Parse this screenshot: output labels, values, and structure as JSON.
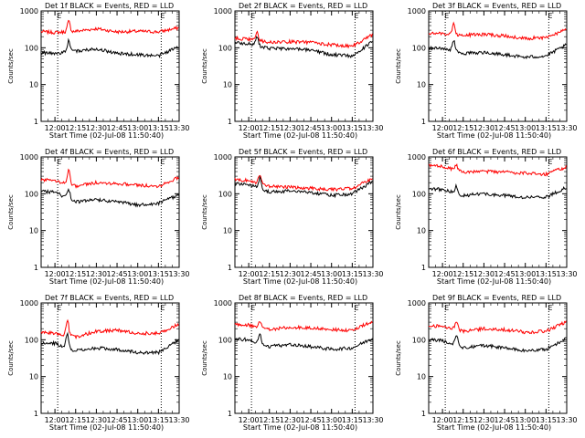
{
  "chart_data": [
    {
      "type": "line",
      "title": "Det 1f BLACK = Events, RED = LLD",
      "ylabel": "Counts/sec",
      "xlabel": "Start Time (02-Jul-08 11:50:40)",
      "x": [
        "12:00",
        "12:15",
        "12:30",
        "12:45",
        "13:00",
        "13:15",
        "13:30"
      ],
      "xlim": [
        "11:50",
        "13:30"
      ],
      "ylim": [
        1,
        1000
      ],
      "yscale": "log",
      "yticks": [
        1,
        10,
        100,
        1000
      ],
      "marker_text": "E",
      "marker_times": [
        "12:00",
        "13:15"
      ],
      "grid": false,
      "series": [
        {
          "color": "#ff0000",
          "values": [
            260,
            280,
            330,
            270,
            280,
            270,
            350
          ],
          "peak": {
            "time": "12:10",
            "value": 520
          }
        },
        {
          "color": "#000000",
          "values": [
            70,
            80,
            95,
            70,
            65,
            60,
            110
          ],
          "peak": {
            "time": "12:10",
            "value": 160
          }
        }
      ]
    },
    {
      "type": "line",
      "title": "Det 2f BLACK = Events, RED = LLD",
      "ylabel": "Counts/sec",
      "xlabel": "Start Time (02-Jul-08 11:50:40)",
      "x": [
        "12:00",
        "12:15",
        "12:30",
        "12:45",
        "13:00",
        "13:15",
        "13:30"
      ],
      "xlim": [
        "11:50",
        "13:30"
      ],
      "ylim": [
        1,
        1000
      ],
      "yscale": "log",
      "yticks": [
        1,
        10,
        100,
        1000
      ],
      "marker_text": "E",
      "marker_times": [
        "12:00",
        "13:15"
      ],
      "grid": false,
      "series": [
        {
          "color": "#ff0000",
          "values": [
            170,
            140,
            145,
            140,
            120,
            110,
            230
          ],
          "peak": {
            "time": "12:06",
            "value": 260
          }
        },
        {
          "color": "#000000",
          "values": [
            130,
            95,
            95,
            85,
            65,
            60,
            150
          ],
          "peak": {
            "time": "12:06",
            "value": 200
          }
        }
      ]
    },
    {
      "type": "line",
      "title": "Det 3f BLACK = Events, RED = LLD",
      "ylabel": "Counts/sec",
      "xlabel": "Start Time (02-Jul-08 11:50:40)",
      "x": [
        "12:00",
        "12:15",
        "12:30",
        "12:45",
        "13:00",
        "13:15",
        "13:30"
      ],
      "xlim": [
        "11:50",
        "13:30"
      ],
      "ylim": [
        1,
        1000
      ],
      "yscale": "log",
      "yticks": [
        1,
        10,
        100,
        1000
      ],
      "marker_text": "E",
      "marker_times": [
        "12:00",
        "13:15"
      ],
      "grid": false,
      "series": [
        {
          "color": "#ff0000",
          "values": [
            240,
            220,
            230,
            210,
            180,
            190,
            310
          ],
          "peak": {
            "time": "12:08",
            "value": 440
          }
        },
        {
          "color": "#000000",
          "values": [
            95,
            70,
            75,
            65,
            55,
            60,
            120
          ],
          "peak": {
            "time": "12:08",
            "value": 160
          }
        }
      ]
    },
    {
      "type": "line",
      "title": "Det 4f BLACK = Events, RED = LLD",
      "ylabel": "Counts/sec",
      "xlabel": "Start Time (02-Jul-08 11:50:40)",
      "x": [
        "12:00",
        "12:15",
        "12:30",
        "12:45",
        "13:00",
        "13:15",
        "13:30"
      ],
      "xlim": [
        "11:50",
        "13:30"
      ],
      "ylim": [
        1,
        1000
      ],
      "yscale": "log",
      "yticks": [
        1,
        10,
        100,
        1000
      ],
      "marker_text": "E",
      "marker_times": [
        "12:00",
        "13:15"
      ],
      "grid": false,
      "series": [
        {
          "color": "#ff0000",
          "values": [
            230,
            160,
            200,
            190,
            170,
            160,
            280
          ],
          "peak": {
            "time": "12:10",
            "value": 470
          }
        },
        {
          "color": "#000000",
          "values": [
            110,
            60,
            70,
            60,
            50,
            55,
            95
          ],
          "peak": {
            "time": "12:10",
            "value": 130
          }
        }
      ]
    },
    {
      "type": "line",
      "title": "Det 5f BLACK = Events, RED = LLD",
      "ylabel": "Counts/sec",
      "xlabel": "Start Time (02-Jul-08 11:50:40)",
      "x": [
        "12:00",
        "12:15",
        "12:30",
        "12:45",
        "13:00",
        "13:15",
        "13:30"
      ],
      "xlim": [
        "11:50",
        "13:30"
      ],
      "ylim": [
        1,
        1000
      ],
      "yscale": "log",
      "yticks": [
        1,
        10,
        100,
        1000
      ],
      "marker_text": "E",
      "marker_times": [
        "12:00",
        "13:15"
      ],
      "grid": false,
      "series": [
        {
          "color": "#ff0000",
          "values": [
            230,
            160,
            150,
            140,
            130,
            140,
            260
          ],
          "peak": {
            "time": "12:08",
            "value": 340
          }
        },
        {
          "color": "#000000",
          "values": [
            180,
            110,
            120,
            110,
            90,
            100,
            220
          ],
          "peak": {
            "time": "12:08",
            "value": 260
          }
        }
      ]
    },
    {
      "type": "line",
      "title": "Det 6f BLACK = Events, RED = LLD",
      "ylabel": "Counts/sec",
      "xlabel": "Start Time (02-Jul-08 11:50:40)",
      "x": [
        "12:00",
        "12:15",
        "12:30",
        "12:45",
        "13:00",
        "13:15",
        "13:30"
      ],
      "xlim": [
        "11:50",
        "13:30"
      ],
      "ylim": [
        1,
        1000
      ],
      "yscale": "log",
      "yticks": [
        1,
        10,
        100,
        1000
      ],
      "marker_text": "E",
      "marker_times": [
        "12:00",
        "13:15"
      ],
      "grid": false,
      "series": [
        {
          "color": "#ff0000",
          "values": [
            560,
            380,
            400,
            390,
            360,
            340,
            540
          ],
          "peak": {
            "time": "12:10",
            "value": 580
          }
        },
        {
          "color": "#000000",
          "values": [
            130,
            90,
            100,
            90,
            80,
            80,
            150
          ],
          "peak": {
            "time": "12:10",
            "value": 160
          }
        }
      ]
    },
    {
      "type": "line",
      "title": "Det 7f BLACK = Events, RED = LLD",
      "ylabel": "Counts/sec",
      "xlabel": "Start Time (02-Jul-08 11:50:40)",
      "x": [
        "12:00",
        "12:15",
        "12:30",
        "12:45",
        "13:00",
        "13:15",
        "13:30"
      ],
      "xlim": [
        "11:50",
        "13:30"
      ],
      "ylim": [
        1,
        1000
      ],
      "yscale": "log",
      "yticks": [
        1,
        10,
        100,
        1000
      ],
      "marker_text": "E",
      "marker_times": [
        "12:00",
        "13:15"
      ],
      "grid": false,
      "series": [
        {
          "color": "#ff0000",
          "values": [
            150,
            120,
            170,
            180,
            150,
            150,
            270
          ],
          "peak": {
            "time": "12:09",
            "value": 340
          }
        },
        {
          "color": "#000000",
          "values": [
            80,
            50,
            60,
            55,
            45,
            45,
            100
          ],
          "peak": {
            "time": "12:09",
            "value": 140
          }
        }
      ]
    },
    {
      "type": "line",
      "title": "Det 8f BLACK = Events, RED = LLD",
      "ylabel": "Counts/sec",
      "xlabel": "Start Time (02-Jul-08 11:50:40)",
      "x": [
        "12:00",
        "12:15",
        "12:30",
        "12:45",
        "13:00",
        "13:15",
        "13:30"
      ],
      "xlim": [
        "11:50",
        "13:30"
      ],
      "ylim": [
        1,
        1000
      ],
      "yscale": "log",
      "yticks": [
        1,
        10,
        100,
        1000
      ],
      "marker_text": "E",
      "marker_times": [
        "12:00",
        "13:15"
      ],
      "grid": false,
      "series": [
        {
          "color": "#ff0000",
          "values": [
            250,
            190,
            220,
            210,
            190,
            180,
            320
          ],
          "peak": {
            "time": "12:08",
            "value": 320
          }
        },
        {
          "color": "#000000",
          "values": [
            100,
            65,
            75,
            65,
            55,
            60,
            110
          ],
          "peak": {
            "time": "12:08",
            "value": 140
          }
        }
      ]
    },
    {
      "type": "line",
      "title": "Det 9f BLACK = Events, RED = LLD",
      "ylabel": "Counts/sec",
      "xlabel": "Start Time (02-Jul-08 11:50:40)",
      "x": [
        "12:00",
        "12:15",
        "12:30",
        "12:45",
        "13:00",
        "13:15",
        "13:30"
      ],
      "xlim": [
        "11:50",
        "13:30"
      ],
      "ylim": [
        1,
        1000
      ],
      "yscale": "log",
      "yticks": [
        1,
        10,
        100,
        1000
      ],
      "marker_text": "E",
      "marker_times": [
        "12:00",
        "13:15"
      ],
      "grid": false,
      "series": [
        {
          "color": "#ff0000",
          "values": [
            230,
            170,
            200,
            190,
            160,
            170,
            310
          ],
          "peak": {
            "time": "12:10",
            "value": 330
          }
        },
        {
          "color": "#000000",
          "values": [
            95,
            60,
            70,
            60,
            50,
            55,
            110
          ],
          "peak": {
            "time": "12:10",
            "value": 140
          }
        }
      ]
    }
  ]
}
